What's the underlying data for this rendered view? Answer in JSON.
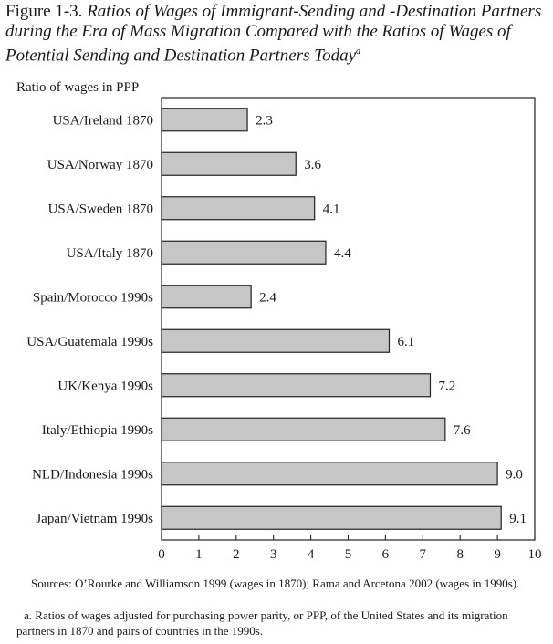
{
  "title": {
    "figure_label": "Figure 1-3.",
    "text": "Ratios of Wages of Immigrant-Sending and -Destination Partners during the Era of Mass Migration Compared with the Ratios of Wages of Potential Sending and Destination Partners Today",
    "superscript": "a"
  },
  "chart_data": {
    "type": "bar",
    "orientation": "horizontal",
    "ylabel": "Ratio of wages in PPP",
    "categories": [
      "USA/Ireland 1870",
      "USA/Norway 1870",
      "USA/Sweden 1870",
      "USA/Italy 1870",
      "Spain/Morocco 1990s",
      "USA/Guatemala 1990s",
      "UK/Kenya 1990s",
      "Italy/Ethiopia 1990s",
      "NLD/Indonesia 1990s",
      "Japan/Vietnam 1990s"
    ],
    "values": [
      2.3,
      3.6,
      4.1,
      4.4,
      2.4,
      6.1,
      7.2,
      7.6,
      9.0,
      9.1
    ],
    "value_labels": [
      "2.3",
      "3.6",
      "4.1",
      "4.4",
      "2.4",
      "6.1",
      "7.2",
      "7.6",
      "9.0",
      "9.1"
    ],
    "xlim": [
      0,
      10
    ],
    "xticks": [
      "0",
      "1",
      "2",
      "3",
      "4",
      "5",
      "6",
      "7",
      "8",
      "9",
      "10"
    ],
    "bar_color": "#c6c6c6",
    "grid": false
  },
  "sources": "Sources: O’Rourke and Williamson 1999 (wages in 1870); Rama and Arcetona 2002 (wages in 1990s).",
  "note": "a. Ratios of wages adjusted for purchasing power parity, or PPP, of the United States and its migration partners in 1870 and pairs of countries in the 1990s."
}
